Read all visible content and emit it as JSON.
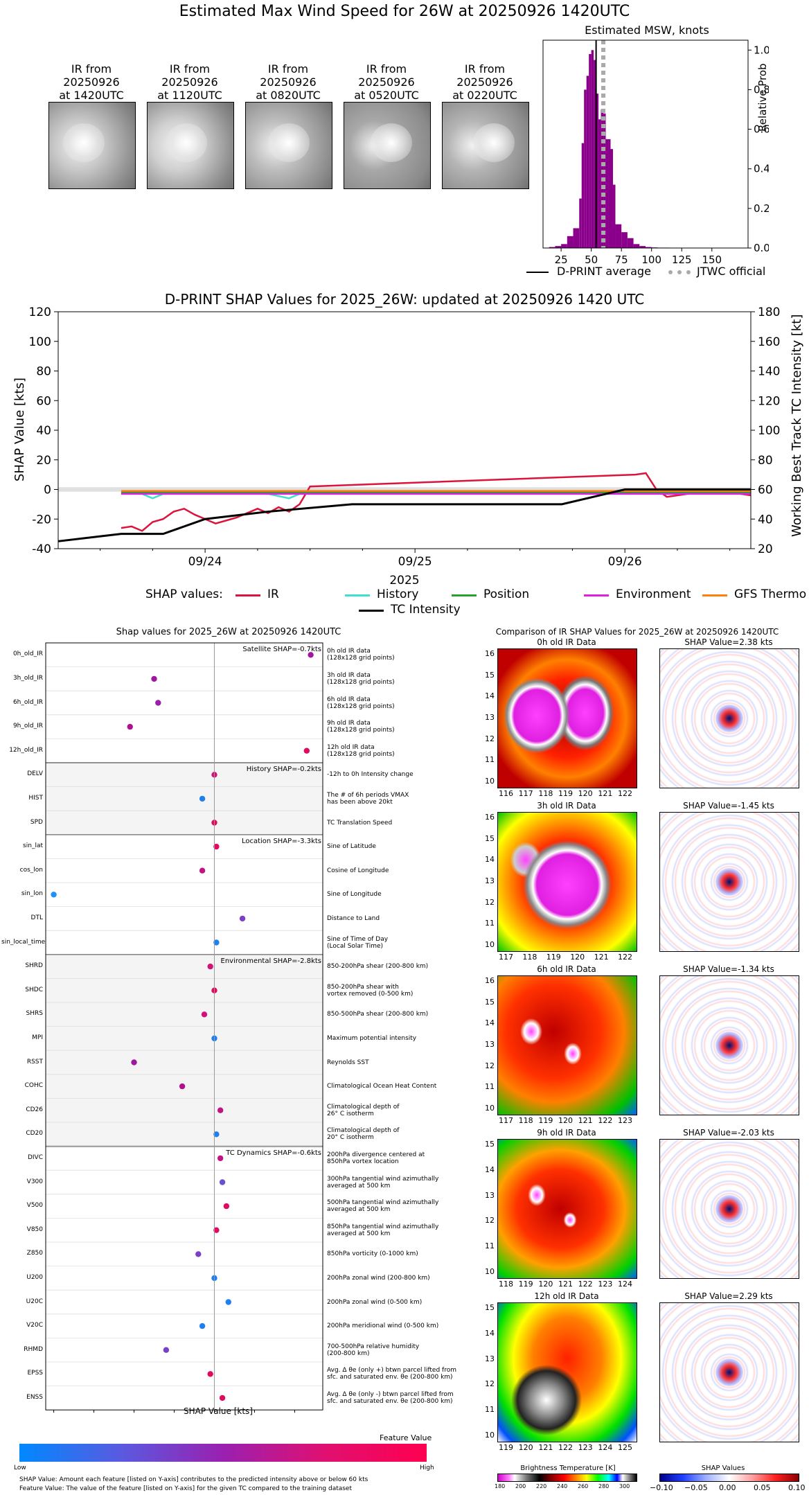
{
  "header": {
    "title": "Estimated Max Wind Speed for 26W at 20250926 1420UTC"
  },
  "thumbnails": [
    {
      "line1": "IR from",
      "line2": "20250926",
      "line3": "at 1420UTC"
    },
    {
      "line1": "IR from",
      "line2": "20250926",
      "line3": "at 1120UTC"
    },
    {
      "line1": "IR from",
      "line2": "20250926",
      "line3": "at 0820UTC"
    },
    {
      "line1": "IR from",
      "line2": "20250926",
      "line3": "at 0520UTC"
    },
    {
      "line1": "IR from",
      "line2": "20250926",
      "line3": "at 0220UTC"
    }
  ],
  "msw_hist": {
    "title": "Estimated MSW, knots",
    "ylabel": "Relative Prob",
    "xticks": [
      "25",
      "50",
      "75",
      "100",
      "125",
      "150"
    ],
    "yticks": [
      "0.0",
      "0.2",
      "0.4",
      "0.6",
      "0.8",
      "1.0"
    ],
    "legend_dprint": "D-PRINT average",
    "legend_jtwc": "JTWC official",
    "bar_color": "#8b008b"
  },
  "shap_timeseries": {
    "title": "D-PRINT SHAP Values for 2025_26W: updated at 20250926 1420 UTC",
    "ylabel_left": "SHAP Value [kts]",
    "ylabel_right": "Working Best Track TC Intensity [kt]",
    "xlabel": "2025",
    "yticks_left": [
      "120",
      "100",
      "80",
      "60",
      "40",
      "20",
      "0",
      "-20",
      "-40"
    ],
    "yticks_right": [
      "180",
      "160",
      "140",
      "120",
      "100",
      "80",
      "60",
      "40",
      "20"
    ],
    "xticks": [
      "09/24",
      "09/25",
      "09/26"
    ],
    "legend_prefix": "SHAP values:",
    "legend_items": [
      {
        "label": "IR",
        "color": "#dc143c"
      },
      {
        "label": "History",
        "color": "#40e0d0"
      },
      {
        "label": "Position",
        "color": "#2ca02c"
      },
      {
        "label": "Environment",
        "color": "#e020e0"
      },
      {
        "label": "GFS Thermo",
        "color": "#ff7f0e"
      }
    ],
    "legend_intensity": "TC Intensity"
  },
  "feature_panel": {
    "title": "Shap values for 2025_26W at 20250926 1420UTC",
    "xlabel": "SHAP Value [kts]",
    "xticks": [
      "-4",
      "-3",
      "-2",
      "-1",
      "0",
      "1",
      "2"
    ],
    "groups": [
      {
        "caption": "Satellite SHAP=-0.7kts"
      },
      {
        "caption": "History SHAP=-0.2kts"
      },
      {
        "caption": "Location SHAP=-3.3kts"
      },
      {
        "caption": "Environmental SHAP=-2.8kts"
      },
      {
        "caption": "TC Dynamics SHAP=-0.6kts"
      }
    ],
    "features": [
      {
        "name": "0h_old_IR",
        "desc1": "0h old IR data",
        "desc2": "(128x128 grid points)",
        "shap": 2.4,
        "color": "#a0169e"
      },
      {
        "name": "3h_old_IR",
        "desc1": "3h old IR data",
        "desc2": "(128x128 grid points)",
        "shap": -1.5,
        "color": "#a0169e"
      },
      {
        "name": "6h_old_IR",
        "desc1": "6h old IR data",
        "desc2": "(128x128 grid points)",
        "shap": -1.4,
        "color": "#9b1fa8"
      },
      {
        "name": "9h_old_IR",
        "desc1": "9h old IR data",
        "desc2": "(128x128 grid points)",
        "shap": -2.1,
        "color": "#b0128e"
      },
      {
        "name": "12h_old_IR",
        "desc1": "12h old IR data",
        "desc2": "(128x128 grid points)",
        "shap": 2.3,
        "color": "#e00a60"
      },
      {
        "name": "DELV",
        "desc1": "-12h to 0h Intensity change",
        "desc2": "",
        "shap": 0.0,
        "color": "#d4107a"
      },
      {
        "name": "HIST",
        "desc1": "The # of 6h periods VMAX",
        "desc2": "has been above 20kt",
        "shap": -0.3,
        "color": "#1f7fef"
      },
      {
        "name": "SPD",
        "desc1": "TC Translation Speed",
        "desc2": "",
        "shap": 0.0,
        "color": "#e00a60"
      },
      {
        "name": "sin_lat",
        "desc1": "Sine of Latitude",
        "desc2": "",
        "shap": 0.05,
        "color": "#e00a60"
      },
      {
        "name": "cos_lon",
        "desc1": "Cosine of Longitude",
        "desc2": "",
        "shap": -0.3,
        "color": "#c01480"
      },
      {
        "name": "sin_lon",
        "desc1": "Sine of Longitude",
        "desc2": "",
        "shap": -4.0,
        "color": "#1f8fff"
      },
      {
        "name": "DTL",
        "desc1": "Distance to Land",
        "desc2": "",
        "shap": 0.7,
        "color": "#7a40c8"
      },
      {
        "name": "sin_local_time",
        "desc1": "Sine of Time of Day",
        "desc2": "(Local Solar Time)",
        "shap": 0.05,
        "color": "#1f7fef"
      },
      {
        "name": "SHRD",
        "desc1": "850-200hPa shear (200-800 km)",
        "desc2": "",
        "shap": -0.1,
        "color": "#d4107a"
      },
      {
        "name": "SHDC",
        "desc1": "850-200hPa shear with",
        "desc2": "vortex removed (0-500 km)",
        "shap": 0.0,
        "color": "#e00a60"
      },
      {
        "name": "SHRS",
        "desc1": "850-500hPa shear (200-800 km)",
        "desc2": "",
        "shap": -0.25,
        "color": "#d4107a"
      },
      {
        "name": "MPI",
        "desc1": "Maximum potential intensity",
        "desc2": "",
        "shap": 0.0,
        "color": "#1f7fef"
      },
      {
        "name": "RSST",
        "desc1": "Reynolds SST",
        "desc2": "",
        "shap": -2.0,
        "color": "#a0169e"
      },
      {
        "name": "COHC",
        "desc1": "Climatological Ocean Heat Content",
        "desc2": "",
        "shap": -0.8,
        "color": "#b0128e"
      },
      {
        "name": "CD26",
        "desc1": "Climatological depth of",
        "desc2": "26° C isotherm",
        "shap": 0.15,
        "color": "#c01480"
      },
      {
        "name": "CD20",
        "desc1": "Climatological depth of",
        "desc2": "20° C isotherm",
        "shap": 0.05,
        "color": "#1f7fef"
      },
      {
        "name": "DIVC",
        "desc1": "200hPa divergence centered at",
        "desc2": "850hPa vortex location",
        "shap": 0.15,
        "color": "#c01480"
      },
      {
        "name": "V300",
        "desc1": "300hPa tangential wind azimuthally",
        "desc2": "averaged at 500 km",
        "shap": 0.2,
        "color": "#6a50d0"
      },
      {
        "name": "V500",
        "desc1": "500hPa tangential wind azimuthally",
        "desc2": "averaged at 500 km",
        "shap": 0.3,
        "color": "#e00a60"
      },
      {
        "name": "V850",
        "desc1": "850hPa tangential wind azimuthally",
        "desc2": "averaged at 500 km",
        "shap": 0.05,
        "color": "#e00a60"
      },
      {
        "name": "Z850",
        "desc1": "850hPa vorticity (0-1000 km)",
        "desc2": "",
        "shap": -0.4,
        "color": "#7a40c8"
      },
      {
        "name": "U200",
        "desc1": "200hPa zonal wind (200-800 km)",
        "desc2": "",
        "shap": 0.0,
        "color": "#1f7fef"
      },
      {
        "name": "U20C",
        "desc1": "200hPa zonal wind (0-500 km)",
        "desc2": "",
        "shap": 0.35,
        "color": "#1f7fef"
      },
      {
        "name": "V20C",
        "desc1": "200hPa meridional wind (0-500 km)",
        "desc2": "",
        "shap": -0.3,
        "color": "#1f7fef"
      },
      {
        "name": "RHMD",
        "desc1": "700-500hPa relative humidity",
        "desc2": "(200-800 km)",
        "shap": -1.2,
        "color": "#7a40c8"
      },
      {
        "name": "EPSS",
        "desc1": "Avg. Δ θe (only +) btwn parcel lifted from",
        "desc2": "sfc. and saturated env. θe (200-800 km)",
        "shap": -0.1,
        "color": "#e00a60"
      },
      {
        "name": "ENSS",
        "desc1": "Avg. Δ θe (only -) btwn parcel lifted from",
        "desc2": "sfc. and saturated env. θe (200-800 km)",
        "shap": 0.2,
        "color": "#e00a60"
      }
    ],
    "colorbar_title": "Feature Value",
    "colorbar_low": "Low",
    "colorbar_high": "High",
    "footnote1": "SHAP Value: Amount each feature [listed on Y-axis] contributes to the predicted intensity above or below 60 kts",
    "footnote2": "Feature Value: The value of the feature [listed on Y-axis] for the given TC compared to the training dataset"
  },
  "ir_comparison": {
    "title": "Comparison of IR SHAP Values for 2025_26W at 20250926 1420UTC",
    "rows": [
      {
        "ir_title": "0h old IR Data",
        "shap_title": "SHAP Value=2.38 kts",
        "xticks": [
          "116",
          "117",
          "118",
          "119",
          "120",
          "121",
          "122"
        ],
        "yticks": [
          "16",
          "15",
          "14",
          "13",
          "12",
          "11",
          "10"
        ]
      },
      {
        "ir_title": "3h old IR Data",
        "shap_title": "SHAP Value=-1.45 kts",
        "xticks": [
          "117",
          "118",
          "119",
          "120",
          "121",
          "122"
        ],
        "yticks": [
          "16",
          "15",
          "14",
          "13",
          "12",
          "11",
          "10"
        ]
      },
      {
        "ir_title": "6h old IR Data",
        "shap_title": "SHAP Value=-1.34 kts",
        "xticks": [
          "117",
          "118",
          "119",
          "120",
          "121",
          "122",
          "123"
        ],
        "yticks": [
          "16",
          "15",
          "14",
          "13",
          "12",
          "11",
          "10"
        ]
      },
      {
        "ir_title": "9h old IR Data",
        "shap_title": "SHAP Value=-2.03 kts",
        "xticks": [
          "118",
          "119",
          "120",
          "121",
          "122",
          "123",
          "124"
        ],
        "yticks": [
          "15",
          "14",
          "13",
          "12",
          "11",
          "10"
        ]
      },
      {
        "ir_title": "12h old IR Data",
        "shap_title": "SHAP Value=2.29 kts",
        "xticks": [
          "119",
          "120",
          "121",
          "122",
          "123",
          "124",
          "125"
        ],
        "yticks": [
          "15",
          "14",
          "13",
          "12",
          "11",
          "10"
        ]
      }
    ],
    "bt_colorbar_title": "Brightness Temperature [K]",
    "bt_ticks": [
      "180",
      "200",
      "220",
      "240",
      "260",
      "280",
      "300"
    ],
    "shap_colorbar_title": "SHAP Values",
    "shap_ticks": [
      "−0.10",
      "−0.05",
      "0.00",
      "0.05",
      "0.10"
    ]
  },
  "chart_data": [
    {
      "type": "bar",
      "title": "Estimated MSW, knots",
      "ylabel": "Relative Prob",
      "xlim": [
        10,
        180
      ],
      "ylim": [
        0,
        1.05
      ],
      "bins": [
        15,
        20,
        25,
        30,
        35,
        40,
        42,
        44,
        46,
        48,
        50,
        52,
        54,
        56,
        58,
        60,
        62,
        64,
        66,
        68,
        70,
        75,
        80,
        85,
        90,
        95,
        100,
        105,
        110,
        115,
        120,
        125,
        130,
        135,
        140,
        145,
        150,
        155,
        160,
        165,
        170
      ],
      "values": [
        0.005,
        0.01,
        0.02,
        0.06,
        0.1,
        0.25,
        0.53,
        0.8,
        0.87,
        0.98,
        1.0,
        0.95,
        0.78,
        0.65,
        0.7,
        0.68,
        0.55,
        0.55,
        0.5,
        0.32,
        0.12,
        0.08,
        0.05,
        0.02,
        0.01,
        0.005,
        0.003,
        0.002,
        0.002,
        0.001,
        0.001,
        0.001,
        0.001,
        0.001,
        0.001,
        0.001,
        0.001,
        0.001,
        0.001,
        0.001,
        0.001
      ],
      "dprint_avg": 54,
      "jtwc_official": 60
    },
    {
      "type": "line",
      "title": "D-PRINT SHAP Values for 2025_26W: updated at 20250926 1420 UTC",
      "xlabel": "2025",
      "ylabel": "SHAP Value [kts]",
      "ylim": [
        -40,
        120
      ],
      "y2lim": [
        20,
        180
      ],
      "x_range_days": [
        23.3,
        26.6
      ],
      "series": [
        {
          "name": "IR",
          "x": [
            23.6,
            23.65,
            23.7,
            23.75,
            23.8,
            23.85,
            23.9,
            23.95,
            24.0,
            24.05,
            24.1,
            24.15,
            24.2,
            24.25,
            24.3,
            24.35,
            24.4,
            24.45,
            24.5,
            26.05,
            26.1,
            26.15,
            26.2,
            26.3,
            26.4,
            26.5,
            26.6
          ],
          "y": [
            -26,
            -25,
            -28,
            -22,
            -20,
            -15,
            -13,
            -17,
            -20,
            -23,
            -21,
            -19,
            -16,
            -13,
            -16,
            -12,
            -15,
            -10,
            2,
            10,
            11,
            0,
            -5,
            -3,
            -1,
            -2,
            -4
          ]
        },
        {
          "name": "History",
          "x": [
            23.6,
            23.7,
            23.75,
            23.8,
            24.0,
            24.3,
            24.4,
            24.45,
            24.5,
            26.6
          ],
          "y": [
            -3,
            -3,
            -6,
            -3,
            -3,
            -3,
            -6,
            -3,
            -3,
            -3
          ]
        },
        {
          "name": "Position",
          "x": [
            23.6,
            26.6
          ],
          "y": [
            -2,
            -2
          ]
        },
        {
          "name": "Environment",
          "x": [
            23.6,
            26.6
          ],
          "y": [
            -3,
            -3
          ]
        },
        {
          "name": "GFS Thermo",
          "x": [
            23.6,
            26.6
          ],
          "y": [
            -1,
            -1
          ]
        },
        {
          "name": "TC Intensity",
          "x": [
            23.3,
            23.6,
            23.8,
            24.0,
            24.3,
            24.7,
            25.7,
            26.0,
            26.6
          ],
          "y": [
            25,
            30,
            30,
            40,
            45,
            50,
            50,
            60,
            60
          ]
        }
      ]
    },
    {
      "type": "scatter",
      "title": "Shap values for 2025_26W at 20250926 1420UTC",
      "xlabel": "SHAP Value [kts]",
      "xlim": [
        -4.2,
        2.7
      ]
    }
  ]
}
